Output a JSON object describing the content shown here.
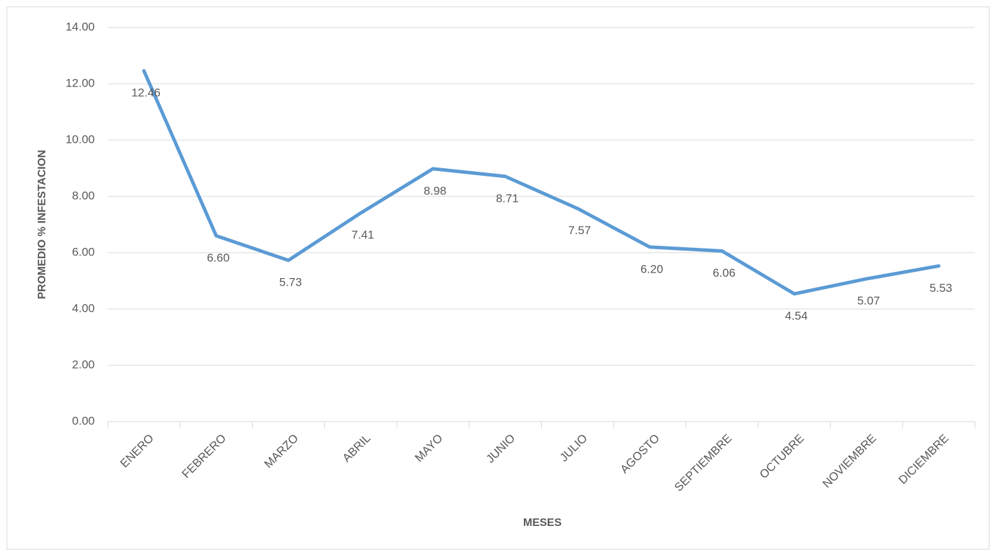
{
  "chart_data": {
    "type": "line",
    "xlabel": "MESES",
    "ylabel": "PROMEDIO % INFESTACION",
    "categories": [
      "ENERO",
      "FEBRERO",
      "MARZO",
      "ABRIL",
      "MAYO",
      "JUNIO",
      "JULIO",
      "AGOSTO",
      "SEPTIEMBRE",
      "OCTUBRE",
      "NOVIEMBRE",
      "DICIEMBRE"
    ],
    "values": [
      12.46,
      6.6,
      5.73,
      7.41,
      8.98,
      8.71,
      7.57,
      6.2,
      6.06,
      4.54,
      5.07,
      5.53
    ],
    "value_labels": [
      "12.46",
      "6.60",
      "5.73",
      "7.41",
      "8.98",
      "8.71",
      "7.57",
      "6.20",
      "6.06",
      "4.54",
      "5.07",
      "5.53"
    ],
    "color": "#5b9bd5",
    "ylim": [
      0,
      14
    ],
    "yticks": [
      {
        "value": 0,
        "label": "0.00"
      },
      {
        "value": 2,
        "label": "2.00"
      },
      {
        "value": 4,
        "label": "4.00"
      },
      {
        "value": 6,
        "label": "6.00"
      },
      {
        "value": 8,
        "label": "8.00"
      },
      {
        "value": 10,
        "label": "10.00"
      },
      {
        "value": 12,
        "label": "12.00"
      },
      {
        "value": 14,
        "label": "14.00"
      }
    ],
    "grid": true
  }
}
